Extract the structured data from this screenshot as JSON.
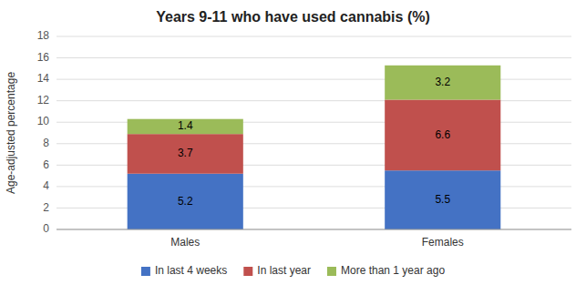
{
  "chart_data": {
    "type": "bar",
    "stacked": true,
    "title": "Years 9-11 who have used cannabis (%)",
    "ylabel": "Age-adjusted percentage",
    "categories": [
      "Males",
      "Females"
    ],
    "series": [
      {
        "name": "In last 4 weeks",
        "color": "#4472C4",
        "values": [
          5.2,
          5.5
        ]
      },
      {
        "name": "In last year",
        "color": "#C0504D",
        "values": [
          3.7,
          6.6
        ]
      },
      {
        "name": "More than 1 year ago",
        "color": "#9BBB59",
        "values": [
          1.4,
          3.2
        ]
      }
    ],
    "ylim": [
      0,
      18
    ],
    "yticks": [
      0,
      2,
      4,
      6,
      8,
      10,
      12,
      14,
      16,
      18
    ],
    "grid": true,
    "data_labels": true,
    "legend": "bottom"
  }
}
